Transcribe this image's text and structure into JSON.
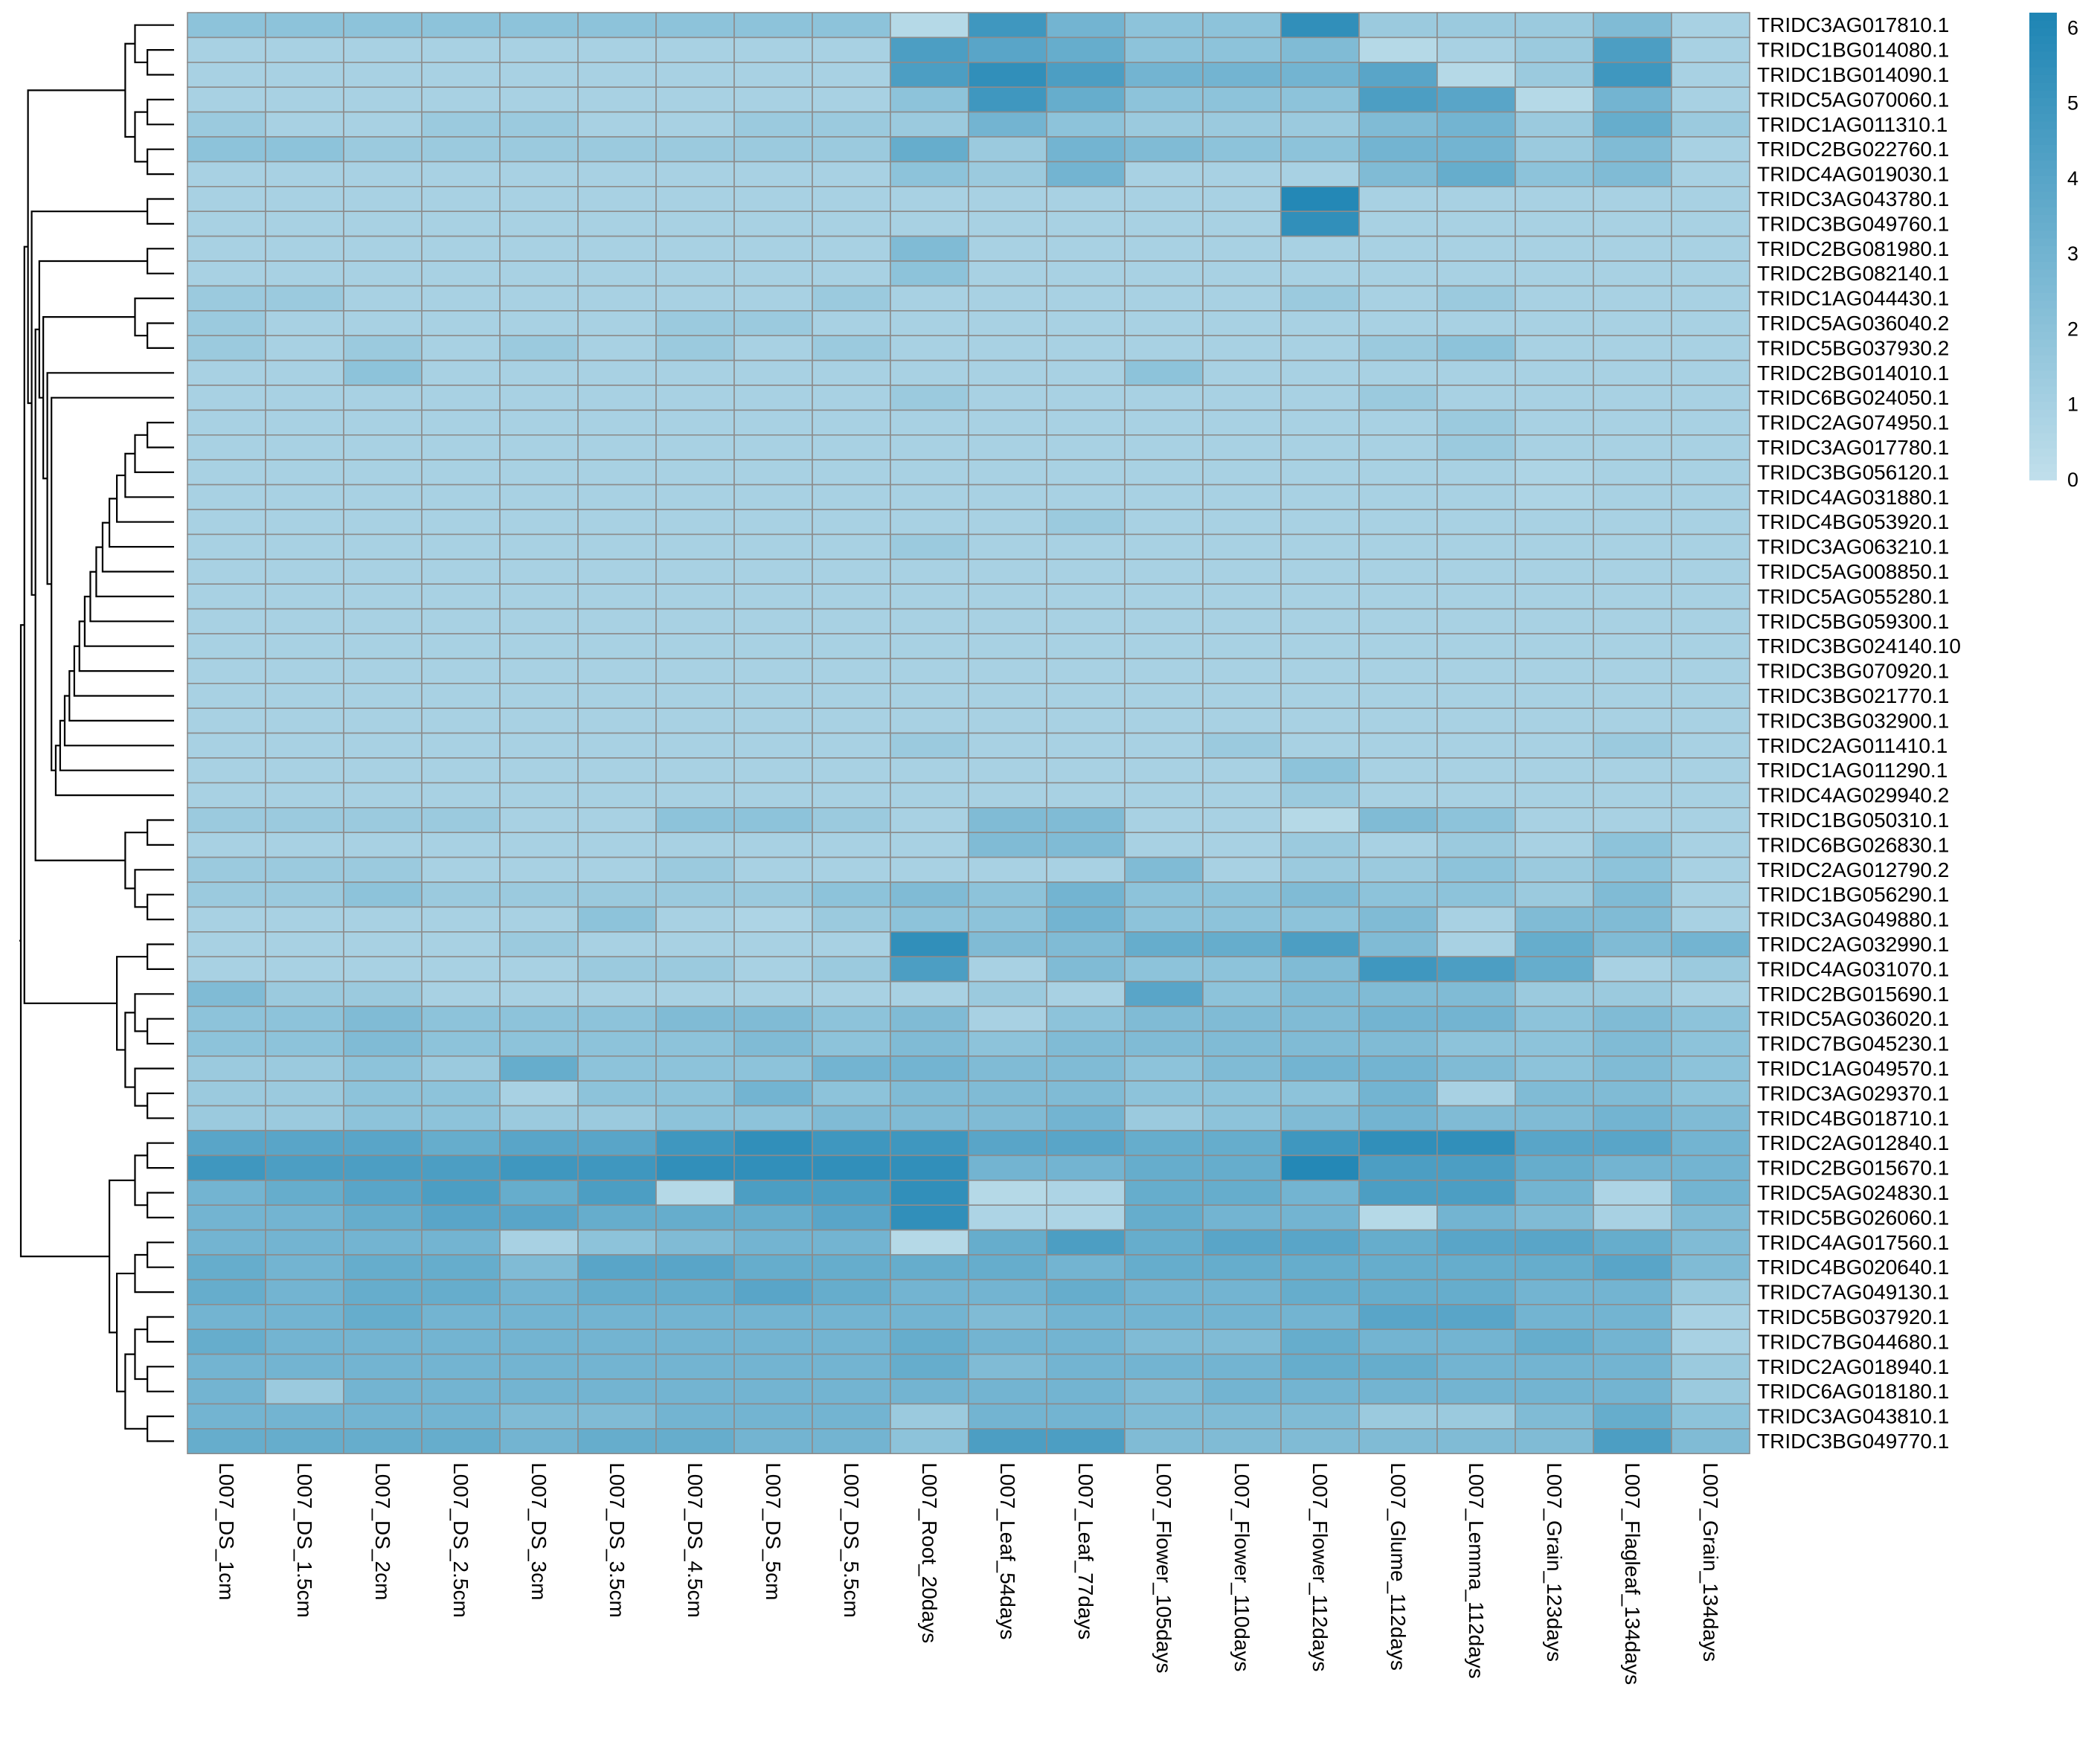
{
  "chart_data": {
    "type": "heatmap",
    "title": "",
    "xlabel": "",
    "ylabel": "",
    "columns": [
      "L007_DS_1cm",
      "L007_DS_1.5cm",
      "L007_DS_2cm",
      "L007_DS_2.5cm",
      "L007_DS_3cm",
      "L007_DS_3.5cm",
      "L007_DS_4.5cm",
      "L007_DS_5cm",
      "L007_DS_5.5cm",
      "L007_Root_20days",
      "L007_Leaf_54days",
      "L007_Leaf_77days",
      "L007_Flower_105days",
      "L007_Flower_110days",
      "L007_Flower_112days",
      "L007_Glume_112days",
      "L007_Lemma_112days",
      "L007_Grain_123days",
      "L007_Flagleaf_134days",
      "L007_Grain_134days"
    ],
    "rows": [
      "TRIDC3AG017810.1",
      "TRIDC1BG014080.1",
      "TRIDC1BG014090.1",
      "TRIDC5AG070060.1",
      "TRIDC1AG011310.1",
      "TRIDC2BG022760.1",
      "TRIDC4AG019030.1",
      "TRIDC3AG043780.1",
      "TRIDC3BG049760.1",
      "TRIDC2BG081980.1",
      "TRIDC2BG082140.1",
      "TRIDC1AG044430.1",
      "TRIDC5AG036040.2",
      "TRIDC5BG037930.2",
      "TRIDC2BG014010.1",
      "TRIDC6BG024050.1",
      "TRIDC2AG074950.1",
      "TRIDC3AG017780.1",
      "TRIDC3BG056120.1",
      "TRIDC4AG031880.1",
      "TRIDC4BG053920.1",
      "TRIDC3AG063210.1",
      "TRIDC5AG008850.1",
      "TRIDC5AG055280.1",
      "TRIDC5BG059300.1",
      "TRIDC3BG024140.10",
      "TRIDC3BG070920.1",
      "TRIDC3BG021770.1",
      "TRIDC3BG032900.1",
      "TRIDC2AG011410.1",
      "TRIDC1AG011290.1",
      "TRIDC4AG029940.2",
      "TRIDC1BG050310.1",
      "TRIDC6BG026830.1",
      "TRIDC2AG012790.2",
      "TRIDC1BG056290.1",
      "TRIDC3AG049880.1",
      "TRIDC2AG032990.1",
      "TRIDC4AG031070.1",
      "TRIDC2BG015690.1",
      "TRIDC5AG036020.1",
      "TRIDC7BG045230.1",
      "TRIDC1AG049570.1",
      "TRIDC3AG029370.1",
      "TRIDC4BG018710.1",
      "TRIDC2AG012840.1",
      "TRIDC2BG015670.1",
      "TRIDC5AG024830.1",
      "TRIDC5BG026060.1",
      "TRIDC4AG017560.1",
      "TRIDC4BG020640.1",
      "TRIDC7AG049130.1",
      "TRIDC5BG037920.1",
      "TRIDC7BG044680.1",
      "TRIDC2AG018940.1",
      "TRIDC6AG018180.1",
      "TRIDC3AG043810.1",
      "TRIDC3BG049770.1"
    ],
    "values": [
      [
        2,
        2,
        2,
        2,
        2,
        2,
        2,
        2,
        2,
        0.5,
        5,
        3,
        2,
        2,
        5.5,
        1.5,
        1.5,
        1.5,
        2.5,
        1
      ],
      [
        1,
        1,
        1,
        1,
        1,
        1,
        1,
        1,
        1,
        4.5,
        4,
        3.5,
        2,
        2,
        2.5,
        0.5,
        1,
        1.5,
        4.5,
        1
      ],
      [
        1,
        1,
        1,
        1,
        1,
        1,
        1,
        1,
        1,
        4.5,
        5.5,
        4.5,
        3,
        3,
        3,
        4,
        0.5,
        1.5,
        5,
        1
      ],
      [
        1,
        1,
        1,
        1,
        1,
        1,
        1,
        1,
        1,
        2,
        5,
        3.5,
        2,
        2,
        2,
        4.5,
        4,
        0.5,
        3,
        1
      ],
      [
        1.5,
        1,
        1,
        1.5,
        1.5,
        1,
        1,
        1.5,
        1.5,
        1.5,
        3,
        2,
        1.5,
        1.5,
        1.5,
        2.5,
        3,
        1.5,
        3.5,
        1.5
      ],
      [
        2,
        2,
        1.5,
        1.5,
        1.5,
        1.5,
        1.5,
        1.5,
        1.5,
        3.5,
        1.5,
        3,
        2.5,
        2,
        2,
        3,
        3,
        1.5,
        2.5,
        1
      ],
      [
        1,
        1,
        1,
        1,
        1,
        1,
        1,
        1,
        1,
        2,
        1.5,
        3,
        1,
        1,
        1,
        2.5,
        3.5,
        2,
        2.5,
        1
      ],
      [
        1,
        1,
        1,
        1,
        1,
        1,
        1,
        1,
        1,
        1,
        1,
        1,
        1,
        1,
        6,
        1,
        1,
        1,
        1,
        1
      ],
      [
        1,
        1,
        1,
        1,
        1,
        1,
        1,
        1,
        1,
        1,
        1,
        1,
        1,
        1,
        5.5,
        1,
        1,
        1,
        1,
        1
      ],
      [
        1,
        1,
        1,
        1,
        1,
        1,
        1,
        1,
        1,
        2.5,
        1,
        1,
        1,
        1,
        1,
        1,
        1,
        1,
        1,
        1
      ],
      [
        1,
        1,
        1,
        1,
        1,
        1,
        1,
        1,
        1,
        2,
        1,
        1,
        1,
        1,
        1,
        1,
        1,
        1,
        1,
        1
      ],
      [
        1.5,
        1.5,
        1,
        1,
        1,
        1,
        1,
        1,
        1.5,
        1,
        1,
        1,
        1,
        1,
        1.5,
        1,
        1.5,
        1,
        1,
        1
      ],
      [
        1.5,
        1,
        1,
        1,
        1,
        1,
        1.5,
        1.5,
        1,
        1,
        1,
        1,
        1,
        1,
        1,
        1,
        1,
        1,
        1,
        1
      ],
      [
        1.5,
        1,
        1.5,
        1,
        1.5,
        1,
        1.5,
        1,
        1.5,
        1,
        1,
        1,
        1,
        1,
        1,
        1.5,
        2,
        1,
        1,
        1
      ],
      [
        1,
        1,
        2,
        1,
        1,
        1,
        1,
        1,
        1,
        1,
        1,
        1,
        2,
        1,
        1,
        1,
        1,
        1,
        1,
        1
      ],
      [
        1,
        1,
        1,
        1,
        1,
        1,
        1,
        1,
        1,
        1.5,
        1,
        1,
        1,
        1,
        1,
        1.5,
        1,
        1,
        1,
        1
      ],
      [
        1,
        1,
        1,
        1,
        1,
        1,
        1,
        1,
        1,
        1,
        1,
        1,
        1,
        1,
        1,
        1,
        1.5,
        1,
        1,
        1
      ],
      [
        1,
        1,
        1,
        1,
        1,
        1,
        1,
        1,
        1,
        1,
        1,
        1,
        1,
        1,
        1,
        1,
        1.5,
        1,
        1,
        1
      ],
      [
        1,
        1,
        1,
        1,
        1,
        1,
        1,
        1,
        1,
        1,
        1,
        1,
        1,
        1,
        1,
        1,
        1,
        0.8,
        1,
        1
      ],
      [
        1,
        1,
        1,
        1,
        1,
        1,
        1,
        1,
        1,
        1,
        1,
        1,
        1,
        1,
        1,
        1,
        1,
        0.8,
        1,
        1
      ],
      [
        1,
        1,
        1,
        1,
        1,
        1,
        1,
        1,
        1,
        1,
        1,
        1.5,
        1,
        1,
        1,
        1,
        1,
        1,
        1,
        1
      ],
      [
        1,
        1,
        1,
        1,
        1,
        1,
        1,
        1,
        1,
        1.5,
        1,
        1,
        1,
        1,
        1,
        1,
        1,
        1,
        1,
        1
      ],
      [
        1,
        1,
        1,
        1,
        1,
        1,
        1,
        1,
        1,
        1,
        1,
        1,
        1,
        1,
        1,
        1,
        1,
        1,
        1,
        1
      ],
      [
        1,
        1,
        1,
        1,
        1,
        1,
        1,
        1,
        1,
        1,
        1,
        1,
        1,
        1,
        1,
        1,
        1,
        1,
        1,
        1
      ],
      [
        1,
        1,
        1,
        1,
        1,
        1,
        1,
        1,
        1,
        1,
        1,
        1,
        1,
        1,
        1,
        1,
        1,
        1,
        1,
        1
      ],
      [
        1,
        1,
        1,
        1,
        1,
        1,
        1,
        1,
        1,
        1,
        1,
        1,
        1,
        1,
        1,
        1,
        1,
        1,
        1,
        1
      ],
      [
        1,
        1,
        1,
        1,
        1,
        1,
        1,
        1,
        1,
        1,
        1,
        1,
        1,
        1,
        1,
        1,
        1,
        1,
        1,
        1
      ],
      [
        1,
        1,
        1,
        1,
        1,
        1,
        1,
        1,
        1,
        1,
        1,
        1,
        1,
        1,
        1,
        1,
        1,
        1,
        1,
        1
      ],
      [
        1,
        1,
        1,
        1,
        1,
        1,
        1,
        1,
        1,
        1,
        1,
        1,
        1,
        1,
        1,
        1,
        1,
        1,
        1,
        1
      ],
      [
        1,
        1,
        1,
        1,
        1,
        1,
        1,
        1,
        1,
        1.5,
        1,
        1,
        1,
        1.5,
        1,
        1,
        1,
        1,
        1.5,
        1
      ],
      [
        1,
        1,
        1,
        1,
        1,
        1,
        1,
        1,
        1,
        1,
        1,
        1,
        1,
        1,
        2,
        1,
        1,
        1,
        1,
        1
      ],
      [
        1,
        1,
        1,
        1,
        1,
        1,
        1,
        1,
        1,
        1,
        1,
        1,
        1,
        1,
        1.5,
        1,
        1,
        1,
        1,
        1
      ],
      [
        1.5,
        1.5,
        1.5,
        1.5,
        1,
        1,
        2,
        2,
        1.5,
        1,
        2.5,
        2.5,
        1,
        1,
        0.5,
        2.5,
        2,
        1,
        1,
        1
      ],
      [
        1,
        1,
        1,
        1,
        1,
        1,
        1,
        1,
        1,
        1,
        2.5,
        2.5,
        1,
        1,
        1.5,
        1,
        1.5,
        1,
        2,
        1
      ],
      [
        1.5,
        1.5,
        1.5,
        1,
        1,
        1,
        1.5,
        1,
        1,
        1,
        1,
        1,
        2.5,
        1,
        1.5,
        1.5,
        2,
        1.5,
        2,
        1
      ],
      [
        1.5,
        1.5,
        2,
        1.5,
        1.5,
        1.5,
        1.5,
        1.5,
        2,
        2.5,
        2,
        3,
        2,
        2,
        2.5,
        2,
        2,
        1.5,
        2.5,
        1
      ],
      [
        1,
        1,
        1,
        1,
        1,
        2,
        1,
        0.8,
        1.5,
        2,
        2,
        3,
        2,
        2,
        2,
        2.5,
        1,
        2.5,
        2.5,
        1
      ],
      [
        1,
        1,
        1,
        1,
        1.5,
        1,
        1,
        1,
        1,
        5.5,
        2.5,
        2.5,
        3.5,
        3.5,
        4.5,
        2.5,
        1,
        3.5,
        2.5,
        3
      ],
      [
        1,
        1,
        1,
        1,
        1,
        1.5,
        1.5,
        1,
        1.5,
        4.5,
        1,
        2.5,
        2,
        2,
        2.5,
        5,
        4.5,
        3.5,
        1,
        1.5
      ],
      [
        2.5,
        1.5,
        1.5,
        1,
        1,
        1,
        1,
        1,
        1,
        1,
        1.5,
        1,
        4,
        2,
        2.5,
        2.5,
        2.5,
        1.5,
        1.5,
        1
      ],
      [
        2,
        2,
        2.5,
        2,
        2,
        2,
        2.5,
        2.5,
        2,
        2.5,
        1,
        2,
        2.5,
        2.5,
        2.5,
        3,
        3,
        2,
        2.5,
        2
      ],
      [
        2,
        2,
        2.5,
        2,
        2,
        2,
        2,
        2.5,
        2,
        2.5,
        2,
        2.5,
        2.5,
        2.5,
        2.5,
        2.5,
        2,
        2,
        2.5,
        2
      ],
      [
        1.5,
        1.5,
        2,
        1.5,
        3.5,
        2,
        2,
        2,
        3,
        3,
        2.5,
        2.5,
        2,
        2.5,
        3,
        3,
        2.5,
        2,
        2.5,
        2
      ],
      [
        1.5,
        1.5,
        2,
        2,
        1,
        2,
        2,
        3,
        2,
        2.5,
        2.5,
        2.5,
        2,
        2,
        2,
        3,
        1,
        2.5,
        2.5,
        2
      ],
      [
        1.5,
        1.5,
        2,
        2,
        1.5,
        1.5,
        2,
        2,
        2.5,
        2.5,
        2.5,
        3,
        1.5,
        2,
        2.5,
        3,
        2.5,
        2.5,
        3,
        2.5
      ],
      [
        4,
        4,
        4,
        3.5,
        4,
        4,
        5,
        5.5,
        5,
        5,
        4,
        4,
        3.5,
        3.5,
        5,
        5.5,
        5.5,
        4,
        4,
        3
      ],
      [
        5,
        4.5,
        4.5,
        4.5,
        5,
        5,
        5.5,
        5.5,
        5.5,
        5.5,
        3,
        3,
        3.5,
        3.5,
        6,
        4.5,
        4.5,
        3.5,
        3,
        3
      ],
      [
        3,
        3.5,
        4,
        4.5,
        3.5,
        4.5,
        0.5,
        4.5,
        4.5,
        5.5,
        0.5,
        0.8,
        3.5,
        3.5,
        3,
        4.5,
        4.5,
        3,
        0.8,
        3
      ],
      [
        3,
        3,
        3.5,
        4,
        4,
        3.5,
        3.5,
        3.5,
        4,
        5.5,
        0.8,
        0.8,
        3.5,
        3,
        3,
        0.5,
        3,
        2.5,
        1,
        2.5
      ],
      [
        3,
        3,
        3,
        3,
        1,
        2,
        2.5,
        3,
        3,
        0.5,
        3.5,
        4.5,
        3.5,
        4,
        4,
        3.5,
        4,
        4,
        3.5,
        2.5
      ],
      [
        3.5,
        3,
        3.5,
        3.5,
        2.5,
        4,
        4,
        3.5,
        3.5,
        3.5,
        3.5,
        3,
        3.5,
        3.5,
        3.5,
        3.5,
        3.5,
        3.5,
        4,
        2.5
      ],
      [
        3.5,
        3,
        3.5,
        3.5,
        3,
        3.5,
        3.5,
        4,
        3.5,
        3,
        3,
        3.5,
        3,
        3,
        3.5,
        3.5,
        3.5,
        3,
        3,
        1.5
      ],
      [
        3,
        3,
        3.5,
        3,
        3,
        3,
        3,
        3,
        3,
        3,
        2.5,
        3,
        3,
        3,
        3,
        4,
        4,
        3,
        3,
        1
      ],
      [
        3.5,
        3,
        3,
        3,
        3,
        3,
        3,
        3,
        3,
        3.5,
        3,
        3,
        2.5,
        2.5,
        3.5,
        3,
        3,
        3.5,
        3,
        1
      ],
      [
        3,
        3,
        3,
        3,
        3,
        3,
        3,
        3,
        3,
        3.5,
        2.5,
        3,
        3,
        3,
        3.5,
        3.5,
        3,
        3,
        3,
        1.5
      ],
      [
        3,
        1.5,
        3,
        3,
        3,
        3,
        3,
        3,
        3,
        3,
        3,
        3,
        2.5,
        3,
        3,
        3,
        3,
        3,
        3,
        1.5
      ],
      [
        3,
        3,
        3,
        3,
        2.5,
        2.5,
        3,
        3,
        3,
        1.5,
        3,
        3,
        2.5,
        2.5,
        2.5,
        1.5,
        1.5,
        2.5,
        3.5,
        2
      ],
      [
        3.5,
        3.5,
        3.5,
        3.5,
        3,
        3.5,
        3.5,
        3,
        3,
        2,
        4.5,
        4.5,
        2.5,
        2.5,
        2.5,
        2.5,
        2.5,
        2.5,
        4.5,
        2.5
      ]
    ],
    "color_scale": {
      "low_color": "#C2E0EC",
      "high_color": "#1F85B4",
      "min": 0,
      "max": 6.2,
      "ticks": [
        0,
        1,
        2,
        3,
        4,
        5,
        6
      ]
    },
    "cell_border_color": "#8C8C8C",
    "legend": "right",
    "dendrogram": "rows"
  }
}
